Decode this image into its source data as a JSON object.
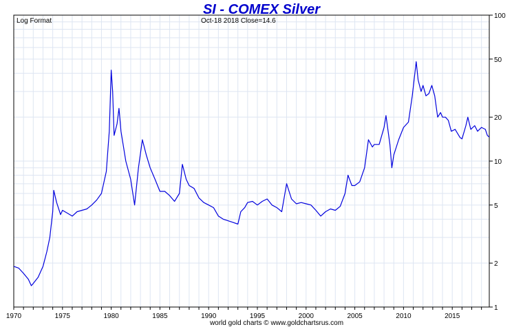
{
  "chart_data": {
    "type": "line",
    "title": "SI  -  COMEX Silver",
    "scale_note": "Log Format",
    "status_text": "Oct-18  2018   Close=14.6",
    "footer": "world gold charts © www.goldchartsrus.com",
    "xlabel": "",
    "ylabel": "",
    "y_scale": "log",
    "ylim": [
      1,
      100
    ],
    "xlim": [
      1970,
      2018.8
    ],
    "x_ticks": [
      1970,
      1975,
      1980,
      1985,
      1990,
      1995,
      2000,
      2005,
      2010,
      2015
    ],
    "x_tick_labels": [
      "1970",
      "1975",
      "1980",
      "1985",
      "1990",
      "1995",
      "2000",
      "2005",
      "2010",
      "2015"
    ],
    "y_ticks": [
      1,
      2,
      5,
      10,
      20,
      50,
      100
    ],
    "y_tick_labels": [
      "1",
      "2",
      "5",
      "10",
      "20",
      "50",
      "100"
    ],
    "grid": true,
    "line_color": "#0000dd",
    "series": [
      {
        "name": "",
        "points": [
          [
            1970.0,
            1.9
          ],
          [
            1970.5,
            1.85
          ],
          [
            1971.0,
            1.7
          ],
          [
            1971.5,
            1.55
          ],
          [
            1971.8,
            1.4
          ],
          [
            1972.0,
            1.45
          ],
          [
            1972.5,
            1.6
          ],
          [
            1973.0,
            1.9
          ],
          [
            1973.4,
            2.4
          ],
          [
            1973.7,
            3.0
          ],
          [
            1974.0,
            4.5
          ],
          [
            1974.1,
            6.3
          ],
          [
            1974.4,
            5.2
          ],
          [
            1974.8,
            4.3
          ],
          [
            1975.0,
            4.6
          ],
          [
            1975.5,
            4.4
          ],
          [
            1976.0,
            4.2
          ],
          [
            1976.5,
            4.5
          ],
          [
            1977.0,
            4.6
          ],
          [
            1977.5,
            4.7
          ],
          [
            1978.0,
            5.0
          ],
          [
            1978.5,
            5.4
          ],
          [
            1979.0,
            6.0
          ],
          [
            1979.5,
            8.5
          ],
          [
            1979.8,
            16.0
          ],
          [
            1980.0,
            42.0
          ],
          [
            1980.15,
            30.0
          ],
          [
            1980.3,
            15.0
          ],
          [
            1980.6,
            18.0
          ],
          [
            1980.8,
            23.0
          ],
          [
            1981.0,
            16.0
          ],
          [
            1981.5,
            10.0
          ],
          [
            1982.0,
            7.5
          ],
          [
            1982.4,
            5.0
          ],
          [
            1982.8,
            9.0
          ],
          [
            1983.2,
            14.0
          ],
          [
            1983.6,
            11.0
          ],
          [
            1984.0,
            9.0
          ],
          [
            1984.5,
            7.5
          ],
          [
            1985.0,
            6.2
          ],
          [
            1985.5,
            6.2
          ],
          [
            1986.0,
            5.8
          ],
          [
            1986.5,
            5.3
          ],
          [
            1987.0,
            6.0
          ],
          [
            1987.3,
            9.5
          ],
          [
            1987.7,
            7.5
          ],
          [
            1988.0,
            6.8
          ],
          [
            1988.5,
            6.5
          ],
          [
            1989.0,
            5.6
          ],
          [
            1989.5,
            5.2
          ],
          [
            1990.0,
            5.0
          ],
          [
            1990.5,
            4.8
          ],
          [
            1991.0,
            4.2
          ],
          [
            1991.5,
            4.0
          ],
          [
            1992.0,
            3.9
          ],
          [
            1992.5,
            3.8
          ],
          [
            1993.0,
            3.7
          ],
          [
            1993.3,
            4.5
          ],
          [
            1993.7,
            4.8
          ],
          [
            1994.0,
            5.2
          ],
          [
            1994.5,
            5.3
          ],
          [
            1995.0,
            5.0
          ],
          [
            1995.5,
            5.3
          ],
          [
            1996.0,
            5.5
          ],
          [
            1996.5,
            5.0
          ],
          [
            1997.0,
            4.8
          ],
          [
            1997.5,
            4.5
          ],
          [
            1998.0,
            7.0
          ],
          [
            1998.5,
            5.5
          ],
          [
            1999.0,
            5.1
          ],
          [
            1999.5,
            5.2
          ],
          [
            2000.0,
            5.1
          ],
          [
            2000.5,
            5.0
          ],
          [
            2001.0,
            4.6
          ],
          [
            2001.5,
            4.2
          ],
          [
            2002.0,
            4.5
          ],
          [
            2002.5,
            4.7
          ],
          [
            2003.0,
            4.6
          ],
          [
            2003.5,
            4.9
          ],
          [
            2004.0,
            6.0
          ],
          [
            2004.3,
            8.0
          ],
          [
            2004.7,
            6.8
          ],
          [
            2005.0,
            6.8
          ],
          [
            2005.5,
            7.2
          ],
          [
            2006.0,
            9.0
          ],
          [
            2006.4,
            14.0
          ],
          [
            2006.8,
            12.5
          ],
          [
            2007.0,
            13.0
          ],
          [
            2007.5,
            13.0
          ],
          [
            2008.0,
            17.0
          ],
          [
            2008.2,
            20.5
          ],
          [
            2008.6,
            13.0
          ],
          [
            2008.8,
            9.0
          ],
          [
            2009.0,
            11.0
          ],
          [
            2009.5,
            14.0
          ],
          [
            2010.0,
            17.0
          ],
          [
            2010.5,
            18.5
          ],
          [
            2010.9,
            28.0
          ],
          [
            2011.3,
            48.0
          ],
          [
            2011.5,
            36.0
          ],
          [
            2011.8,
            30.0
          ],
          [
            2012.0,
            33.0
          ],
          [
            2012.3,
            28.0
          ],
          [
            2012.6,
            29.0
          ],
          [
            2012.9,
            33.0
          ],
          [
            2013.2,
            28.0
          ],
          [
            2013.5,
            20.0
          ],
          [
            2013.8,
            21.5
          ],
          [
            2014.0,
            20.0
          ],
          [
            2014.3,
            20.0
          ],
          [
            2014.6,
            19.0
          ],
          [
            2014.9,
            16.0
          ],
          [
            2015.3,
            16.5
          ],
          [
            2015.8,
            14.5
          ],
          [
            2016.0,
            14.2
          ],
          [
            2016.4,
            17.5
          ],
          [
            2016.6,
            20.0
          ],
          [
            2016.9,
            16.5
          ],
          [
            2017.3,
            17.5
          ],
          [
            2017.6,
            16.0
          ],
          [
            2018.0,
            17.0
          ],
          [
            2018.4,
            16.5
          ],
          [
            2018.6,
            15.0
          ],
          [
            2018.8,
            14.6
          ]
        ]
      }
    ]
  }
}
